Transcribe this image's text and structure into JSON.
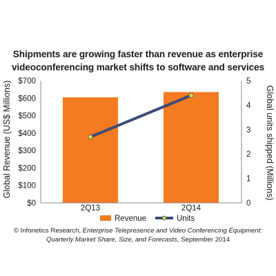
{
  "chart_data": {
    "type": "bar",
    "title_lines": [
      "Shipments are growing faster than revenue as enterprise",
      "videoconferencing market shifts to software and services"
    ],
    "categories": [
      "2Q13",
      "2Q14"
    ],
    "ylabel": "Global Revenue (US$ Millions)",
    "y2label": "Global units shipped (Millions)",
    "ylim": [
      0,
      700
    ],
    "y2lim": [
      0,
      5
    ],
    "yticks": [
      "$0",
      "$100",
      "$200",
      "$300",
      "$400",
      "$500",
      "$600",
      "$700"
    ],
    "y2ticks": [
      "0",
      "1",
      "2",
      "3",
      "4",
      "5"
    ],
    "series": [
      {
        "name": "Revenue",
        "type": "bar",
        "axis": "left",
        "values": [
          605,
          635
        ],
        "color": "#f47b20"
      },
      {
        "name": "Units",
        "type": "line",
        "axis": "right",
        "values": [
          2.7,
          4.4
        ],
        "color": "#3d4a78",
        "marker_color": "#d7e33c"
      }
    ],
    "grid": false,
    "legend_position": "bottom"
  },
  "source": {
    "prefix": "© Infonetics Research, ",
    "italic_1": "Enterprise Telepresence and Video Conferencing Equipment:",
    "italic_2": "Quarterly Market Share, Size, and Forecasts",
    "suffix": ", September 2014"
  }
}
